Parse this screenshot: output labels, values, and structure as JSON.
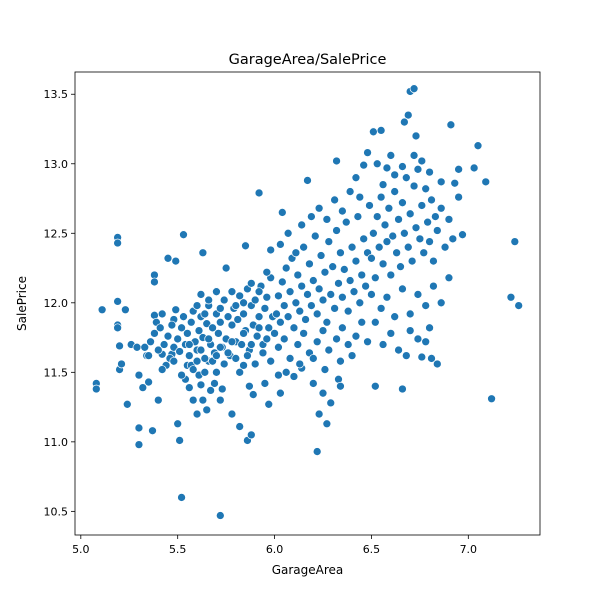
{
  "chart_data": {
    "type": "scatter",
    "title": "GarageArea/SalePrice",
    "xlabel": "GarageArea",
    "ylabel": "SalePrice",
    "xlim": [
      4.97,
      7.37
    ],
    "ylim": [
      10.33,
      13.66
    ],
    "xticks": [
      "5.0",
      "5.5",
      "6.0",
      "6.5",
      "7.0"
    ],
    "yticks": [
      "10.5",
      "11.0",
      "11.5",
      "12.0",
      "12.5",
      "13.0",
      "13.5"
    ],
    "marker_color": "#1f77b4",
    "marker_edge_color": "#ffffff",
    "grid": false,
    "legend": "none",
    "points": [
      [
        5.08,
        11.42
      ],
      [
        5.08,
        11.38
      ],
      [
        5.11,
        11.95
      ],
      [
        5.19,
        12.47
      ],
      [
        5.19,
        12.43
      ],
      [
        5.19,
        12.01
      ],
      [
        5.19,
        11.84
      ],
      [
        5.19,
        11.82
      ],
      [
        5.2,
        11.69
      ],
      [
        5.2,
        11.52
      ],
      [
        5.21,
        11.56
      ],
      [
        5.23,
        11.95
      ],
      [
        5.24,
        11.27
      ],
      [
        5.26,
        11.7
      ],
      [
        5.29,
        11.68
      ],
      [
        5.3,
        11.48
      ],
      [
        5.3,
        11.1
      ],
      [
        5.3,
        10.98
      ],
      [
        5.32,
        11.39
      ],
      [
        5.33,
        11.68
      ],
      [
        5.34,
        11.62
      ],
      [
        5.35,
        11.43
      ],
      [
        5.37,
        11.08
      ],
      [
        5.38,
        11.91
      ],
      [
        5.38,
        12.2
      ],
      [
        5.38,
        12.15
      ],
      [
        5.39,
        11.86
      ],
      [
        5.4,
        11.3
      ],
      [
        5.42,
        11.92
      ],
      [
        5.42,
        11.63
      ],
      [
        5.44,
        11.55
      ],
      [
        5.45,
        12.32
      ],
      [
        5.47,
        11.63
      ],
      [
        5.48,
        11.88
      ],
      [
        5.49,
        12.3
      ],
      [
        5.5,
        11.13
      ],
      [
        5.51,
        11.01
      ],
      [
        5.52,
        10.6
      ],
      [
        5.53,
        12.49
      ],
      [
        5.54,
        11.45
      ],
      [
        5.55,
        11.55
      ],
      [
        5.56,
        11.39
      ],
      [
        5.57,
        11.55
      ],
      [
        5.58,
        11.3
      ],
      [
        5.6,
        11.2
      ],
      [
        5.61,
        11.48
      ],
      [
        5.62,
        11.41
      ],
      [
        5.63,
        11.3
      ],
      [
        5.63,
        12.36
      ],
      [
        5.65,
        11.23
      ],
      [
        5.66,
        11.58
      ],
      [
        5.67,
        11.37
      ],
      [
        5.69,
        11.42
      ],
      [
        5.7,
        11.5
      ],
      [
        5.72,
        10.47
      ],
      [
        5.72,
        11.3
      ],
      [
        5.73,
        11.38
      ],
      [
        5.75,
        12.25
      ],
      [
        5.78,
        11.2
      ],
      [
        5.82,
        11.11
      ],
      [
        5.84,
        11.55
      ],
      [
        5.85,
        12.41
      ],
      [
        5.86,
        11.01
      ],
      [
        5.87,
        11.4
      ],
      [
        5.88,
        11.05
      ],
      [
        5.89,
        11.34
      ],
      [
        5.92,
        12.79
      ],
      [
        5.95,
        11.42
      ],
      [
        5.97,
        11.27
      ],
      [
        5.98,
        12.38
      ],
      [
        6.02,
        11.48
      ],
      [
        6.03,
        11.35
      ],
      [
        6.04,
        12.65
      ],
      [
        6.06,
        11.5
      ],
      [
        6.1,
        11.47
      ],
      [
        6.14,
        11.53
      ],
      [
        6.17,
        12.88
      ],
      [
        6.2,
        11.42
      ],
      [
        6.22,
        10.93
      ],
      [
        6.23,
        11.2
      ],
      [
        6.25,
        11.35
      ],
      [
        6.27,
        11.13
      ],
      [
        6.29,
        11.28
      ],
      [
        6.32,
        13.02
      ],
      [
        6.33,
        11.45
      ],
      [
        6.34,
        11.4
      ],
      [
        6.42,
        12.9
      ],
      [
        6.46,
        12.99
      ],
      [
        6.48,
        13.08
      ],
      [
        6.51,
        13.23
      ],
      [
        6.52,
        11.4
      ],
      [
        6.55,
        13.24
      ],
      [
        6.56,
        12.85
      ],
      [
        6.58,
        12.97
      ],
      [
        6.62,
        12.92
      ],
      [
        6.66,
        11.38
      ],
      [
        6.67,
        13.3
      ],
      [
        6.68,
        11.62
      ],
      [
        6.69,
        13.35
      ],
      [
        6.7,
        13.52
      ],
      [
        6.72,
        13.54
      ],
      [
        6.73,
        13.2
      ],
      [
        6.76,
        11.61
      ],
      [
        6.78,
        11.72
      ],
      [
        6.81,
        11.6
      ],
      [
        6.84,
        11.56
      ],
      [
        6.86,
        12.87
      ],
      [
        6.9,
        12.18
      ],
      [
        6.91,
        13.28
      ],
      [
        6.93,
        12.86
      ],
      [
        6.95,
        12.96
      ],
      [
        6.97,
        12.49
      ],
      [
        7.03,
        12.97
      ],
      [
        7.05,
        13.13
      ],
      [
        7.09,
        12.87
      ],
      [
        7.12,
        11.31
      ],
      [
        7.22,
        12.04
      ],
      [
        7.24,
        12.44
      ],
      [
        7.26,
        11.98
      ],
      [
        5.35,
        11.62
      ],
      [
        5.36,
        11.72
      ],
      [
        5.38,
        11.78
      ],
      [
        5.4,
        11.66
      ],
      [
        5.41,
        11.82
      ],
      [
        5.43,
        11.7
      ],
      [
        5.45,
        11.76
      ],
      [
        5.46,
        11.6
      ],
      [
        5.47,
        11.84
      ],
      [
        5.48,
        11.68
      ],
      [
        5.49,
        11.95
      ],
      [
        5.5,
        11.74
      ],
      [
        5.51,
        11.65
      ],
      [
        5.52,
        11.82
      ],
      [
        5.53,
        11.9
      ],
      [
        5.54,
        11.7
      ],
      [
        5.55,
        11.78
      ],
      [
        5.56,
        11.62
      ],
      [
        5.57,
        11.86
      ],
      [
        5.58,
        11.94
      ],
      [
        5.59,
        11.72
      ],
      [
        5.6,
        11.66
      ],
      [
        5.61,
        11.8
      ],
      [
        5.62,
        11.9
      ],
      [
        5.63,
        11.75
      ],
      [
        5.64,
        11.6
      ],
      [
        5.65,
        11.85
      ],
      [
        5.66,
        11.98
      ],
      [
        5.67,
        11.7
      ],
      [
        5.68,
        11.82
      ],
      [
        5.69,
        11.64
      ],
      [
        5.7,
        11.92
      ],
      [
        5.71,
        11.78
      ],
      [
        5.72,
        11.86
      ],
      [
        5.73,
        11.68
      ],
      [
        5.74,
        12.02
      ],
      [
        5.75,
        11.74
      ],
      [
        5.76,
        11.9
      ],
      [
        5.77,
        11.62
      ],
      [
        5.78,
        11.84
      ],
      [
        5.79,
        11.96
      ],
      [
        5.8,
        11.72
      ],
      [
        5.81,
        11.88
      ],
      [
        5.82,
        12.05
      ],
      [
        5.83,
        11.7
      ],
      [
        5.84,
        11.92
      ],
      [
        5.85,
        11.8
      ],
      [
        5.86,
        12.1
      ],
      [
        5.87,
        11.66
      ],
      [
        5.88,
        11.98
      ],
      [
        5.89,
        11.84
      ],
      [
        5.9,
        12.02
      ],
      [
        5.91,
        11.76
      ],
      [
        5.92,
        11.9
      ],
      [
        5.93,
        12.12
      ],
      [
        5.94,
        11.7
      ],
      [
        5.95,
        11.96
      ],
      [
        5.96,
        12.04
      ],
      [
        5.97,
        11.82
      ],
      [
        5.98,
        12.18
      ],
      [
        5.99,
        11.9
      ],
      [
        5.42,
        11.52
      ],
      [
        5.48,
        11.58
      ],
      [
        5.52,
        11.48
      ],
      [
        5.56,
        11.7
      ],
      [
        5.58,
        11.52
      ],
      [
        5.6,
        11.58
      ],
      [
        5.62,
        11.66
      ],
      [
        5.64,
        11.5
      ],
      [
        5.66,
        11.74
      ],
      [
        5.68,
        11.58
      ],
      [
        5.7,
        11.62
      ],
      [
        5.72,
        11.68
      ],
      [
        5.74,
        11.56
      ],
      [
        5.76,
        11.64
      ],
      [
        5.78,
        11.72
      ],
      [
        5.8,
        11.6
      ],
      [
        5.82,
        11.5
      ],
      [
        5.84,
        11.78
      ],
      [
        5.86,
        11.62
      ],
      [
        5.88,
        11.7
      ],
      [
        5.9,
        11.56
      ],
      [
        5.92,
        11.82
      ],
      [
        5.94,
        11.64
      ],
      [
        5.96,
        11.74
      ],
      [
        5.98,
        11.58
      ],
      [
        5.6,
        11.98
      ],
      [
        5.62,
        12.06
      ],
      [
        5.64,
        11.92
      ],
      [
        5.66,
        12.02
      ],
      [
        5.7,
        12.08
      ],
      [
        5.72,
        11.96
      ],
      [
        5.78,
        12.08
      ],
      [
        5.8,
        11.98
      ],
      [
        5.84,
        12.0
      ],
      [
        5.88,
        12.14
      ],
      [
        5.92,
        12.08
      ],
      [
        5.96,
        12.22
      ],
      [
        6.0,
        11.78
      ],
      [
        6.01,
        11.92
      ],
      [
        6.02,
        12.05
      ],
      [
        6.03,
        11.86
      ],
      [
        6.04,
        12.15
      ],
      [
        6.05,
        11.98
      ],
      [
        6.06,
        12.25
      ],
      [
        6.07,
        11.9
      ],
      [
        6.08,
        12.08
      ],
      [
        6.09,
        12.32
      ],
      [
        6.1,
        11.82
      ],
      [
        6.11,
        12.0
      ],
      [
        6.12,
        12.2
      ],
      [
        6.13,
        11.94
      ],
      [
        6.14,
        12.12
      ],
      [
        6.15,
        12.4
      ],
      [
        6.16,
        11.88
      ],
      [
        6.17,
        12.06
      ],
      [
        6.18,
        12.28
      ],
      [
        6.19,
        11.98
      ],
      [
        6.2,
        12.16
      ],
      [
        6.21,
        12.48
      ],
      [
        6.22,
        11.92
      ],
      [
        6.23,
        12.1
      ],
      [
        6.24,
        12.34
      ],
      [
        6.25,
        12.02
      ],
      [
        6.26,
        12.22
      ],
      [
        6.27,
        11.86
      ],
      [
        6.28,
        12.44
      ],
      [
        6.29,
        12.06
      ],
      [
        6.3,
        12.26
      ],
      [
        6.31,
        11.96
      ],
      [
        6.32,
        12.52
      ],
      [
        6.33,
        12.14
      ],
      [
        6.34,
        12.36
      ],
      [
        6.35,
        12.04
      ],
      [
        6.36,
        12.24
      ],
      [
        6.37,
        12.58
      ],
      [
        6.38,
        11.94
      ],
      [
        6.39,
        12.16
      ],
      [
        6.4,
        12.4
      ],
      [
        6.41,
        12.08
      ],
      [
        6.42,
        12.3
      ],
      [
        6.43,
        12.62
      ],
      [
        6.44,
        12.0
      ],
      [
        6.45,
        12.2
      ],
      [
        6.46,
        12.46
      ],
      [
        6.47,
        12.12
      ],
      [
        6.48,
        12.36
      ],
      [
        6.49,
        12.7
      ],
      [
        6.5,
        12.06
      ],
      [
        6.02,
        11.68
      ],
      [
        6.05,
        11.74
      ],
      [
        6.08,
        11.6
      ],
      [
        6.12,
        11.7
      ],
      [
        6.15,
        11.78
      ],
      [
        6.18,
        11.64
      ],
      [
        6.22,
        11.72
      ],
      [
        6.25,
        11.8
      ],
      [
        6.28,
        11.66
      ],
      [
        6.32,
        11.74
      ],
      [
        6.35,
        11.82
      ],
      [
        6.38,
        11.7
      ],
      [
        6.42,
        11.76
      ],
      [
        6.45,
        11.86
      ],
      [
        6.48,
        11.72
      ],
      [
        6.03,
        12.42
      ],
      [
        6.07,
        12.5
      ],
      [
        6.11,
        12.36
      ],
      [
        6.14,
        12.56
      ],
      [
        6.19,
        12.62
      ],
      [
        6.23,
        12.68
      ],
      [
        6.27,
        12.6
      ],
      [
        6.31,
        12.74
      ],
      [
        6.35,
        12.66
      ],
      [
        6.39,
        12.8
      ],
      [
        6.44,
        12.76
      ],
      [
        6.06,
        11.5
      ],
      [
        6.13,
        11.56
      ],
      [
        6.2,
        11.6
      ],
      [
        6.26,
        11.52
      ],
      [
        6.34,
        11.58
      ],
      [
        6.4,
        11.62
      ],
      [
        6.5,
        12.32
      ],
      [
        6.51,
        12.5
      ],
      [
        6.52,
        12.18
      ],
      [
        6.53,
        12.62
      ],
      [
        6.54,
        12.4
      ],
      [
        6.55,
        12.76
      ],
      [
        6.56,
        12.28
      ],
      [
        6.57,
        12.56
      ],
      [
        6.58,
        12.44
      ],
      [
        6.59,
        12.68
      ],
      [
        6.6,
        12.2
      ],
      [
        6.61,
        12.48
      ],
      [
        6.62,
        12.8
      ],
      [
        6.63,
        12.36
      ],
      [
        6.64,
        12.6
      ],
      [
        6.65,
        12.26
      ],
      [
        6.66,
        12.72
      ],
      [
        6.67,
        12.5
      ],
      [
        6.68,
        12.9
      ],
      [
        6.69,
        12.4
      ],
      [
        6.7,
        12.64
      ],
      [
        6.71,
        12.3
      ],
      [
        6.72,
        12.84
      ],
      [
        6.73,
        12.54
      ],
      [
        6.74,
        12.96
      ],
      [
        6.75,
        12.46
      ],
      [
        6.76,
        12.7
      ],
      [
        6.77,
        12.36
      ],
      [
        6.78,
        12.82
      ],
      [
        6.79,
        12.58
      ],
      [
        6.8,
        12.44
      ],
      [
        6.81,
        12.74
      ],
      [
        6.82,
        12.3
      ],
      [
        6.83,
        12.62
      ],
      [
        6.84,
        12.52
      ],
      [
        6.86,
        12.68
      ],
      [
        6.88,
        12.4
      ],
      [
        6.9,
        12.6
      ],
      [
        6.92,
        12.46
      ],
      [
        6.95,
        12.76
      ],
      [
        6.52,
        11.86
      ],
      [
        6.55,
        11.96
      ],
      [
        6.58,
        12.04
      ],
      [
        6.62,
        11.9
      ],
      [
        6.66,
        12.1
      ],
      [
        6.7,
        11.92
      ],
      [
        6.74,
        12.06
      ],
      [
        6.78,
        11.98
      ],
      [
        6.82,
        12.12
      ],
      [
        6.86,
        12.0
      ],
      [
        6.56,
        11.7
      ],
      [
        6.6,
        11.78
      ],
      [
        6.64,
        11.66
      ],
      [
        6.7,
        11.8
      ],
      [
        6.74,
        11.74
      ],
      [
        6.8,
        11.82
      ],
      [
        6.53,
        13.0
      ],
      [
        6.6,
        13.06
      ],
      [
        6.66,
        12.98
      ],
      [
        6.72,
        13.06
      ],
      [
        6.76,
        13.02
      ],
      [
        6.8,
        12.94
      ]
    ]
  }
}
